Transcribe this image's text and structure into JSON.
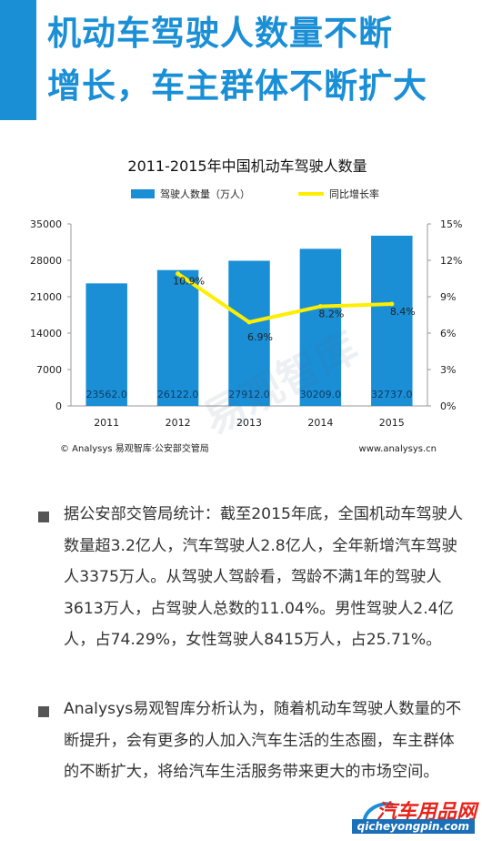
{
  "headline": {
    "line1": "机动车驾驶人数量不断",
    "line2": "增长，车主群体不断扩大"
  },
  "colors": {
    "accent": "#1a8fd6",
    "bar": "#1a8fd6",
    "line": "#ffee00"
  },
  "chart_data": {
    "type": "bar+line",
    "title": "2011-2015年中国机动车驾驶人数量",
    "categories": [
      "2011",
      "2012",
      "2013",
      "2014",
      "2015"
    ],
    "series": [
      {
        "name": "驾驶人数量（万人）",
        "type": "bar",
        "axis": "left",
        "values": [
          23562.0,
          26122.0,
          27912.0,
          30209.0,
          32737.0
        ],
        "labels": [
          "23562.0",
          "26122.0",
          "27912.0",
          "30209.0",
          "32737.0"
        ]
      },
      {
        "name": "同比增长率",
        "type": "line",
        "axis": "right",
        "values": [
          null,
          10.9,
          6.9,
          8.2,
          8.4
        ],
        "labels": [
          "",
          "10.9%",
          "6.9%",
          "8.2%",
          "8.4%"
        ]
      }
    ],
    "left_axis": {
      "min": 0,
      "max": 35000,
      "ticks": [
        "0",
        "7000",
        "14000",
        "21000",
        "28000",
        "35000"
      ]
    },
    "right_axis": {
      "min": 0,
      "max": 15,
      "ticks": [
        "0%",
        "3%",
        "6%",
        "9%",
        "12%",
        "15%"
      ]
    },
    "grid": false,
    "legend": "top",
    "source": "© Analysys 易观智库·公安部交管局",
    "site": "www.analysys.cn",
    "watermark": "易观智库"
  },
  "bullets": [
    "据公安部交管局统计：截至2015年底，全国机动车驾驶人数量超3.2亿人，汽车驾驶人2.8亿人，全年新增汽车驾驶人3375万人。从驾驶人驾龄看，驾龄不满1年的驾驶人3613万人，占驾驶人总数的11.04%。男性驾驶人2.4亿人，占74.29%，女性驾驶人8415万人，占25.71%。",
    "Analysys易观智库分析认为，随着机动车驾驶人数量的不断提升，会有更多的人加入汽车生活的生态圈，车主群体的不断扩大，将给汽车生活服务带来更大的市场空间。"
  ],
  "site_logo": {
    "name": "汽车用品网",
    "url": "qicheyongpin.com"
  }
}
